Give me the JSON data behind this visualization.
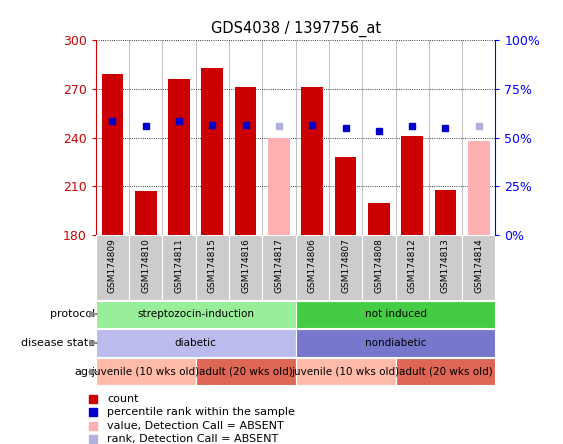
{
  "title": "GDS4038 / 1397756_at",
  "samples": [
    "GSM174809",
    "GSM174810",
    "GSM174811",
    "GSM174815",
    "GSM174816",
    "GSM174817",
    "GSM174806",
    "GSM174807",
    "GSM174808",
    "GSM174812",
    "GSM174813",
    "GSM174814"
  ],
  "bar_values": [
    279,
    207,
    276,
    283,
    271,
    null,
    271,
    228,
    200,
    241,
    208,
    null
  ],
  "absent_values": [
    null,
    null,
    null,
    null,
    null,
    240,
    null,
    null,
    null,
    null,
    null,
    238
  ],
  "percentile_ranks": [
    250,
    247,
    250,
    248,
    248,
    null,
    248,
    246,
    244,
    247,
    246,
    null
  ],
  "absent_ranks": [
    null,
    null,
    null,
    null,
    null,
    247,
    null,
    null,
    null,
    null,
    null,
    247
  ],
  "ylim": [
    180,
    300
  ],
  "yticks": [
    180,
    210,
    240,
    270,
    300
  ],
  "right_ylim": [
    0,
    100
  ],
  "right_yticks": [
    0,
    25,
    50,
    75,
    100
  ],
  "right_yticklabels": [
    "0%",
    "25%",
    "50%",
    "75%",
    "100%"
  ],
  "bar_color": "#cc0000",
  "absent_bar_color": "#ffb0b0",
  "rank_color": "#0000cc",
  "absent_rank_color": "#b0b0dd",
  "protocol_groups": [
    {
      "label": "streptozocin-induction",
      "start": 0,
      "end": 6,
      "color": "#99ee99"
    },
    {
      "label": "not induced",
      "start": 6,
      "end": 12,
      "color": "#44cc44"
    }
  ],
  "disease_groups": [
    {
      "label": "diabetic",
      "start": 0,
      "end": 6,
      "color": "#bbbbee"
    },
    {
      "label": "nondiabetic",
      "start": 6,
      "end": 12,
      "color": "#7777cc"
    }
  ],
  "age_groups": [
    {
      "label": "juvenile (10 wks old)",
      "start": 0,
      "end": 3,
      "color": "#ffbbaa"
    },
    {
      "label": "adult (20 wks old)",
      "start": 3,
      "end": 6,
      "color": "#dd6655"
    },
    {
      "label": "juvenile (10 wks old)",
      "start": 6,
      "end": 9,
      "color": "#ffbbaa"
    },
    {
      "label": "adult (20 wks old)",
      "start": 9,
      "end": 12,
      "color": "#dd6655"
    }
  ],
  "legend_items": [
    {
      "label": "count",
      "color": "#cc0000"
    },
    {
      "label": "percentile rank within the sample",
      "color": "#0000cc"
    },
    {
      "label": "value, Detection Call = ABSENT",
      "color": "#ffb0b0"
    },
    {
      "label": "rank, Detection Call = ABSENT",
      "color": "#b0b0dd"
    }
  ],
  "protocol_label": "protocol",
  "disease_label": "disease state",
  "age_label": "age",
  "sample_bg_color": "#cccccc",
  "chart_bg_color": "#ffffff"
}
